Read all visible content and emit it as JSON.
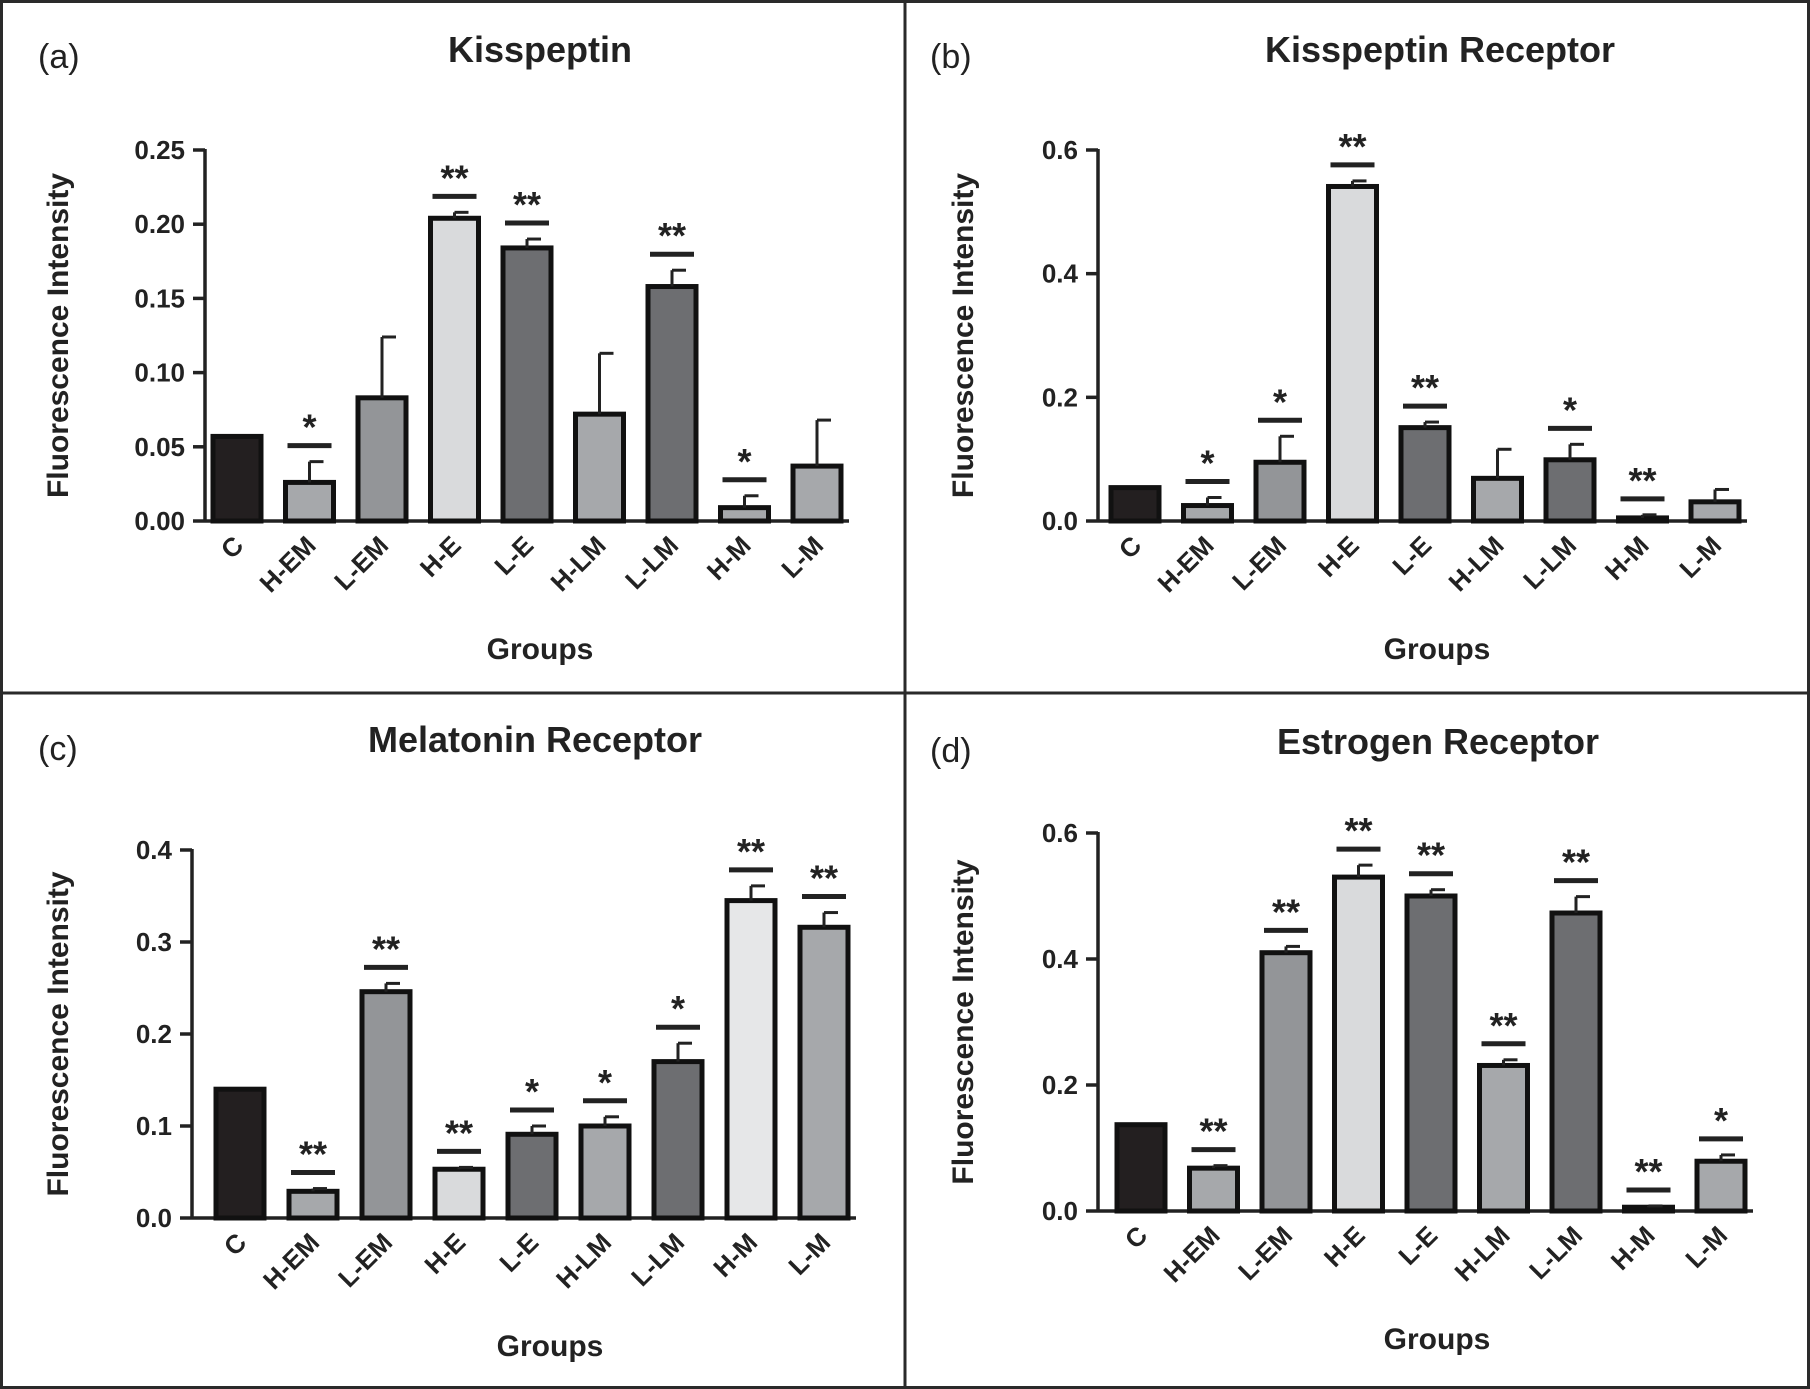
{
  "chart_data": [
    {
      "type": "bar",
      "panel_label": "(a)",
      "title": "Kisspeptin",
      "xlabel": "Groups",
      "ylabel": "Fluorescence Intensity",
      "ylim": [
        0,
        0.25
      ],
      "yticks": [
        "0.00",
        "0.05",
        "0.10",
        "0.15",
        "0.20",
        "0.25"
      ],
      "categories": [
        "C",
        "H-EM",
        "L-EM",
        "H-E",
        "L-E",
        "H-LM",
        "L-LM",
        "H-M",
        "L-M"
      ],
      "values": [
        0.057,
        0.026,
        0.083,
        0.204,
        0.184,
        0.072,
        0.158,
        0.009,
        0.037
      ],
      "errors": [
        0,
        0.014,
        0.041,
        0.004,
        0.006,
        0.041,
        0.011,
        0.008,
        0.031
      ],
      "significance": [
        "",
        "*",
        "",
        "**",
        "**",
        "",
        "**",
        "*",
        ""
      ],
      "colors": [
        "#231f20",
        "#a6a8ab",
        "#939598",
        "#d9dadc",
        "#6d6e71",
        "#a6a8ab",
        "#6d6e71",
        "#a6a8ab",
        "#a6a8ab"
      ]
    },
    {
      "type": "bar",
      "panel_label": "(b)",
      "title": "Kisspeptin Receptor",
      "xlabel": "Groups",
      "ylabel": "Fluorescence Intensity",
      "ylim": [
        0,
        0.6
      ],
      "yticks": [
        "0.0",
        "0.2",
        "0.4",
        "0.6"
      ],
      "categories": [
        "C",
        "H-EM",
        "L-EM",
        "H-E",
        "L-E",
        "H-LM",
        "L-LM",
        "H-M",
        "L-M"
      ],
      "values": [
        0.054,
        0.025,
        0.095,
        0.541,
        0.151,
        0.069,
        0.099,
        0.005,
        0.031
      ],
      "errors": [
        0,
        0.013,
        0.042,
        0.009,
        0.009,
        0.047,
        0.025,
        0.005,
        0.02
      ],
      "significance": [
        "",
        "*",
        "*",
        "**",
        "**",
        "",
        "*",
        "**",
        ""
      ],
      "colors": [
        "#231f20",
        "#a6a8ab",
        "#939598",
        "#d9dadc",
        "#6d6e71",
        "#a6a8ab",
        "#6d6e71",
        "#a6a8ab",
        "#a6a8ab"
      ]
    },
    {
      "type": "bar",
      "panel_label": "(c)",
      "title": "Melatonin Receptor",
      "xlabel": "Groups",
      "ylabel": "Fluorescence Intensity",
      "ylim": [
        0,
        0.4
      ],
      "yticks": [
        "0.0",
        "0.1",
        "0.2",
        "0.3",
        "0.4"
      ],
      "categories": [
        "C",
        "H-EM",
        "L-EM",
        "H-E",
        "L-E",
        "H-LM",
        "L-LM",
        "H-M",
        "L-M"
      ],
      "values": [
        0.14,
        0.029,
        0.246,
        0.053,
        0.091,
        0.1,
        0.17,
        0.345,
        0.316
      ],
      "errors": [
        0,
        0.003,
        0.009,
        0.002,
        0.009,
        0.01,
        0.02,
        0.016,
        0.016
      ],
      "significance": [
        "",
        "**",
        "**",
        "**",
        "*",
        "*",
        "*",
        "**",
        "**"
      ],
      "colors": [
        "#231f20",
        "#a6a8ab",
        "#939598",
        "#d9dadc",
        "#6d6e71",
        "#a6a8ab",
        "#6d6e71",
        "#e6e7e8",
        "#a6a8ab"
      ]
    },
    {
      "type": "bar",
      "panel_label": "(d)",
      "title": "Estrogen Receptor",
      "xlabel": "Groups",
      "ylabel": "Fluorescence Intensity",
      "ylim": [
        0,
        0.6
      ],
      "yticks": [
        "0.0",
        "0.2",
        "0.4",
        "0.6"
      ],
      "categories": [
        "C",
        "H-EM",
        "L-EM",
        "H-E",
        "L-E",
        "H-LM",
        "L-LM",
        "H-M",
        "L-M"
      ],
      "values": [
        0.137,
        0.068,
        0.41,
        0.53,
        0.5,
        0.231,
        0.473,
        0.006,
        0.079
      ],
      "errors": [
        0,
        0.004,
        0.01,
        0.019,
        0.01,
        0.009,
        0.026,
        0.002,
        0.01
      ],
      "significance": [
        "",
        "**",
        "**",
        "**",
        "**",
        "**",
        "**",
        "**",
        "*"
      ],
      "colors": [
        "#231f20",
        "#a6a8ab",
        "#939598",
        "#d9dadc",
        "#6d6e71",
        "#a6a8ab",
        "#6d6e71",
        "#a6a8ab",
        "#a6a8ab"
      ]
    }
  ]
}
